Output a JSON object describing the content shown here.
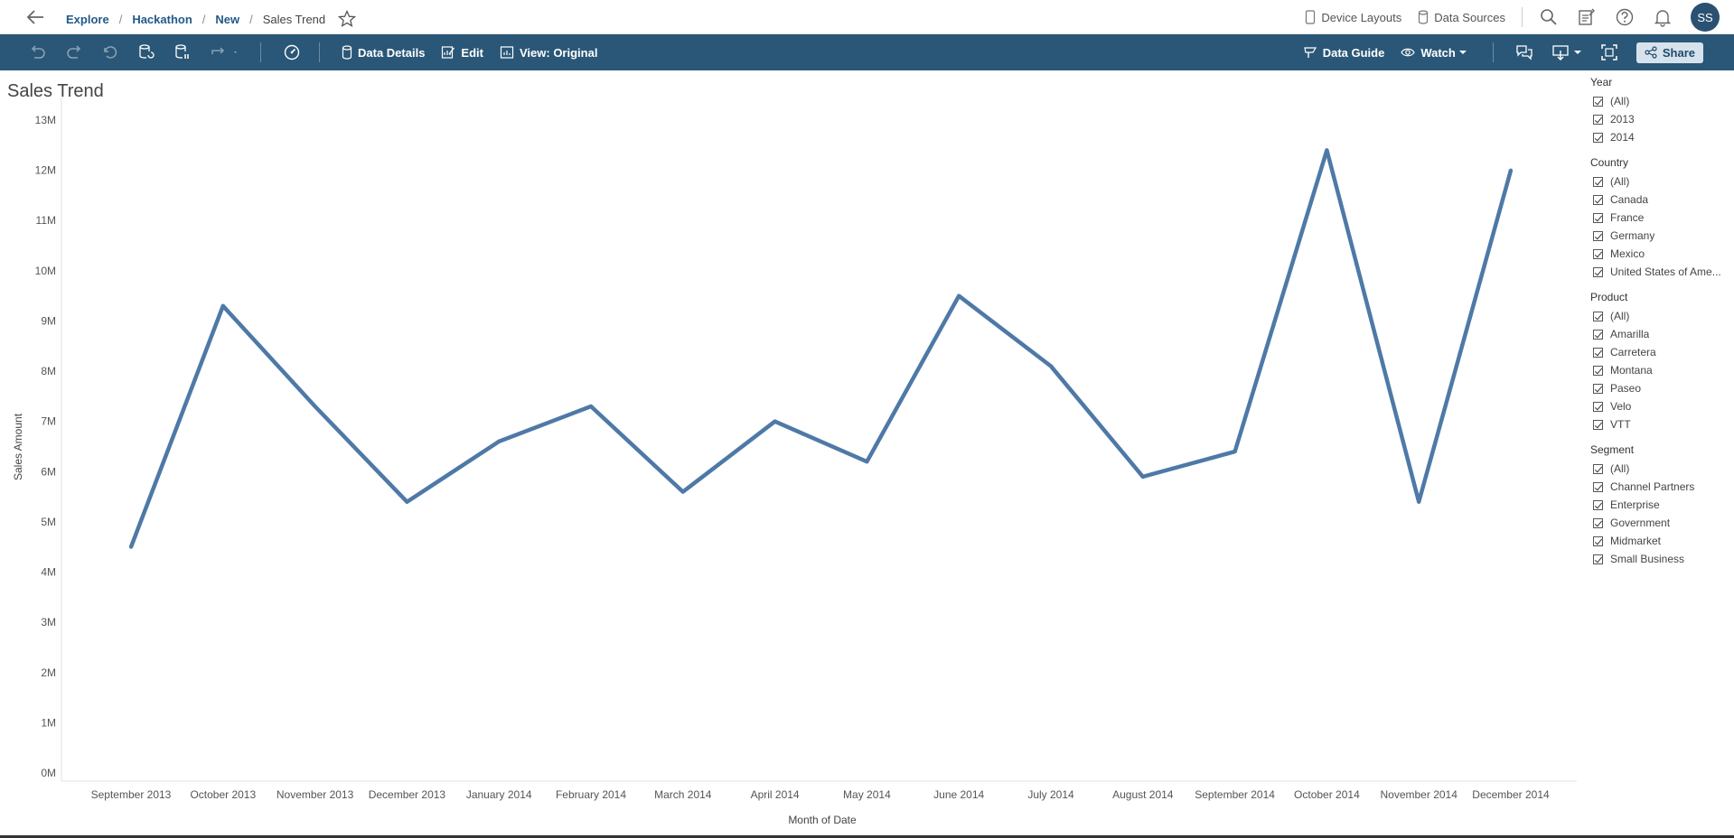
{
  "breadcrumbs": [
    {
      "label": "Explore"
    },
    {
      "label": "Hackathon"
    },
    {
      "label": "New"
    }
  ],
  "current_view": "Sales Trend",
  "topbar": {
    "device_layouts": "Device Layouts",
    "data_sources": "Data Sources",
    "avatar_initials": "SS"
  },
  "toolbar": {
    "data_details": "Data Details",
    "edit": "Edit",
    "view_original": "View: Original",
    "data_guide": "Data Guide",
    "watch": "Watch",
    "share": "Share"
  },
  "colors": {
    "toolbar_bg": "#2a5777",
    "line": "#4e79a7",
    "link": "#1f5a8a"
  },
  "chart_data": {
    "type": "line",
    "title": "Sales Trend",
    "xlabel": "Month of Date",
    "ylabel": "Sales Amount",
    "x": [
      "September 2013",
      "October 2013",
      "November 2013",
      "December 2013",
      "January 2014",
      "February 2014",
      "March 2014",
      "April 2014",
      "May 2014",
      "June 2014",
      "July 2014",
      "August 2014",
      "September 2014",
      "October 2014",
      "November 2014",
      "December 2014"
    ],
    "values": [
      4.5,
      9.3,
      7.3,
      5.4,
      6.6,
      7.3,
      5.6,
      7.0,
      6.2,
      9.5,
      8.1,
      5.9,
      6.4,
      12.4,
      5.4,
      12.0
    ],
    "y_unit": "M",
    "ylim": [
      0,
      13
    ],
    "yticks": [
      "0M",
      "1M",
      "2M",
      "3M",
      "4M",
      "5M",
      "6M",
      "7M",
      "8M",
      "9M",
      "10M",
      "11M",
      "12M",
      "13M"
    ],
    "grid": false
  },
  "filters": [
    {
      "title": "Year",
      "items": [
        "(All)",
        "2013",
        "2014"
      ]
    },
    {
      "title": "Country",
      "items": [
        "(All)",
        "Canada",
        "France",
        "Germany",
        "Mexico",
        "United States of Ame..."
      ]
    },
    {
      "title": "Product",
      "items": [
        "(All)",
        "Amarilla",
        "Carretera",
        "Montana",
        "Paseo",
        "Velo",
        "VTT"
      ]
    },
    {
      "title": "Segment",
      "items": [
        "(All)",
        "Channel Partners",
        "Enterprise",
        "Government",
        "Midmarket",
        "Small Business"
      ]
    }
  ]
}
